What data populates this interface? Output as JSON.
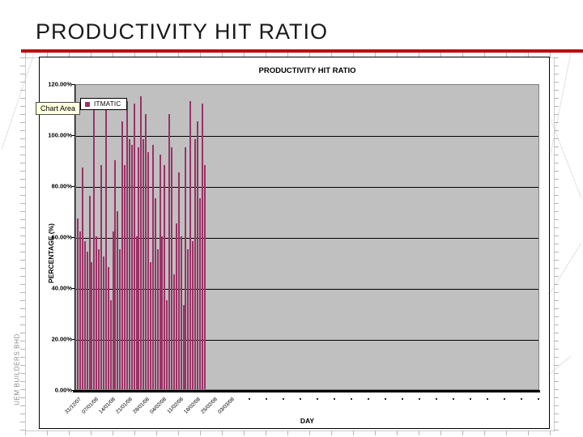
{
  "slide": {
    "title": "PRODUCTIVITY HIT RATIO",
    "side_text": "UEM BUILDERS BHD",
    "accent_color": "#c00000"
  },
  "chart": {
    "title": "PRODUCTIVITY HIT RATIO",
    "tooltip": "Chart Area",
    "legend": {
      "label": "ITMATIC",
      "swatch_color": "#993366"
    },
    "y_axis": {
      "title": "PERCENTAGE (%)"
    },
    "x_axis": {
      "title": "DAY"
    },
    "colors": {
      "bar": "#993366",
      "plot_bg": "#c0c0c0",
      "gridline": "#000000",
      "axis": "#000000",
      "tooltip_bg": "#ffffe1",
      "faint_line": "#e6e6e6"
    }
  },
  "chart_data": {
    "type": "bar",
    "title": "PRODUCTIVITY HIT RATIO",
    "xlabel": "DAY",
    "ylabel": "PERCENTAGE (%)",
    "ylim": [
      0,
      120
    ],
    "y_tick_labels": [
      "120.00%",
      "100.00%",
      "80.00%",
      "60.00%",
      "40.00%",
      "20.00%",
      "0.00%"
    ],
    "x_tick_labels": [
      "31/12/07",
      "07/01/08",
      "14/01/08",
      "21/01/08",
      "28/01/08",
      "04/02/08",
      "11/02/08",
      "18/02/08",
      "25/02/08",
      "03/03/08"
    ],
    "x_unlabeled_tick_count": 18,
    "grid": true,
    "legend_position": "top-left-inside",
    "plot_background": "#c0c0c0",
    "series": [
      {
        "name": "ITMATIC",
        "color": "#993366",
        "values": [
          67,
          62,
          87,
          58,
          54,
          76,
          50,
          113,
          60,
          55,
          88,
          52,
          114,
          48,
          35,
          62,
          90,
          70,
          55,
          105,
          88,
          113,
          98,
          96,
          112,
          60,
          95,
          115,
          98,
          108,
          93,
          50,
          96,
          75,
          55,
          92,
          60,
          88,
          35,
          108,
          95,
          45,
          65,
          85,
          60,
          33,
          95,
          55,
          113,
          58,
          98,
          105,
          75,
          112,
          88
        ]
      }
    ]
  }
}
